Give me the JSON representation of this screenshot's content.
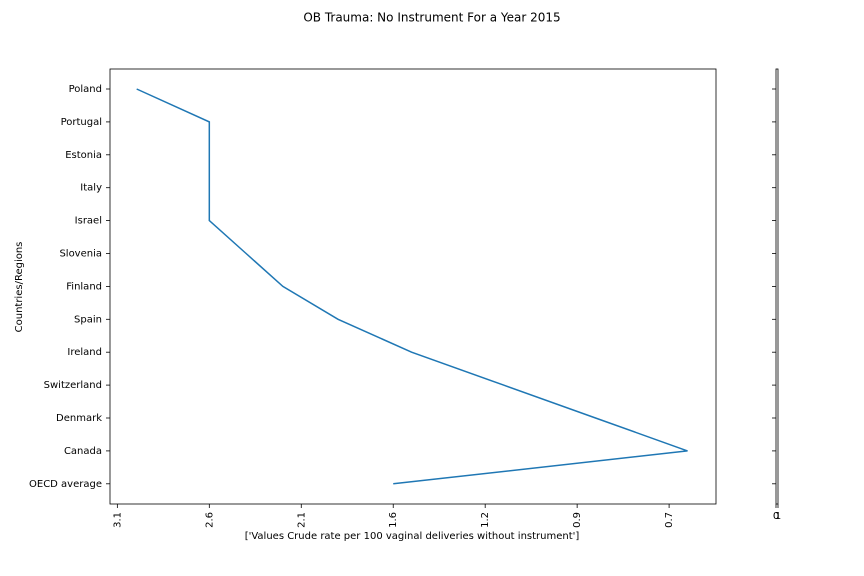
{
  "chart_data": {
    "type": "line",
    "title": "OB Trauma: No Instrument For a Year 2015",
    "x_label": "['Values Crude rate per 100 vaginal deliveries without instrument']",
    "y_label": "Countries/Regions",
    "categories": [
      "Poland",
      "Portugal",
      "Estonia",
      "Italy",
      "Israel",
      "Slovenia",
      "Finland",
      "Spain",
      "Ireland",
      "Switzerland",
      "Denmark",
      "Canada",
      "OECD average"
    ],
    "series": [
      {
        "name": "Values",
        "color": "#1f77b4",
        "values": [
          0.21,
          1,
          1,
          1,
          1,
          1.4,
          1.8,
          2.4,
          3.2,
          4.2,
          5.2,
          6.2,
          3.0
        ]
      }
    ],
    "xlim": [
      -0.08,
      6.51
    ],
    "xticks": [
      {
        "value": 0,
        "label": "3.1"
      },
      {
        "value": 1,
        "label": "2.6"
      },
      {
        "value": 2,
        "label": "2.1"
      },
      {
        "value": 3,
        "label": "1.6"
      },
      {
        "value": 4,
        "label": "1.2"
      },
      {
        "value": 5,
        "label": "0.9"
      },
      {
        "value": 6,
        "label": "0.7"
      }
    ],
    "side_axis_xticks": [
      0,
      1
    ]
  }
}
